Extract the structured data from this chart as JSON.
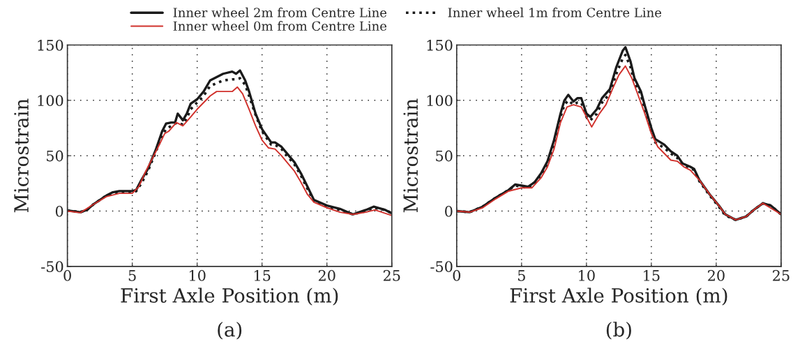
{
  "chart_data": [
    {
      "type": "line",
      "xlabel": "First Axle Position (m)",
      "ylabel": "Microstrain",
      "annotations": [
        "(a)"
      ],
      "xlim": [
        0,
        25
      ],
      "xticks": [
        0,
        5,
        10,
        15,
        20,
        25
      ],
      "ylim": [
        -50,
        150
      ],
      "yticks": [
        -50,
        0,
        50,
        100,
        150
      ],
      "grid": true,
      "legend": "top",
      "series": [
        {
          "name": "Inner wheel 2m from Centre Line",
          "color": "#1a1a1a",
          "line_style": "solid",
          "x": [
            0,
            1,
            1.5,
            2,
            3,
            3.5,
            4,
            5,
            5.3,
            5.7,
            6.2,
            6.8,
            7.3,
            7.6,
            8,
            8.3,
            8.5,
            8.9,
            9.2,
            9.5,
            10,
            10.5,
            11,
            12,
            12.7,
            13,
            13.3,
            13.7,
            14,
            14.5,
            15,
            15.7,
            16,
            16.5,
            17,
            17.5,
            18,
            18.5,
            19,
            20,
            21,
            22,
            23,
            23.6,
            24.5,
            25
          ],
          "values": [
            0.5,
            -1,
            1,
            6,
            14,
            17,
            18,
            18,
            19,
            28,
            38,
            55,
            72,
            79,
            80,
            80,
            88,
            82,
            88,
            97,
            101,
            108,
            118,
            124,
            126,
            124,
            127,
            118,
            108,
            88,
            74,
            62,
            62,
            58,
            51,
            44,
            34,
            22,
            10,
            5,
            2,
            -3,
            1,
            4,
            1,
            -2
          ]
        },
        {
          "name": "Inner wheel 1m from Centre Line",
          "color": "#1a1a1a",
          "line_style": "dotted",
          "x": [
            0,
            1,
            1.5,
            2,
            3,
            3.5,
            4,
            5,
            5.3,
            5.7,
            6.2,
            6.8,
            7.3,
            7.6,
            8,
            8.3,
            8.5,
            8.9,
            9.2,
            9.5,
            10,
            10.5,
            11,
            12,
            12.7,
            13,
            13.3,
            13.7,
            14,
            14.5,
            15,
            15.7,
            16,
            16.5,
            17,
            17.5,
            18,
            18.5,
            19,
            20,
            21,
            22,
            23,
            23.6,
            24.5,
            25
          ],
          "values": [
            0.5,
            -1,
            1,
            6,
            14,
            16,
            17,
            17,
            18,
            25,
            36,
            53,
            68,
            74,
            77,
            79,
            80,
            78,
            84,
            92,
            98,
            104,
            113,
            118,
            119,
            119,
            120,
            114,
            104,
            87,
            72,
            60,
            60,
            56,
            49,
            42,
            32,
            20,
            9,
            4,
            1,
            -3,
            0,
            3,
            1,
            -2
          ]
        },
        {
          "name": "Inner wheel 0m from Centre Line",
          "color": "#d0302b",
          "line_style": "solid",
          "x": [
            0,
            1,
            2,
            3,
            4,
            5,
            5.5,
            6,
            7,
            7.5,
            7.8,
            8.4,
            8.9,
            9.5,
            10,
            11,
            11.5,
            12,
            12.7,
            13.1,
            13.5,
            14,
            14.5,
            15,
            15.5,
            16,
            16.5,
            17,
            17.5,
            18,
            18.5,
            19,
            20,
            21,
            22,
            23,
            23.7,
            25
          ],
          "values": [
            0,
            -1.5,
            6,
            13,
            16,
            16,
            22,
            35,
            58,
            70,
            72,
            80,
            77,
            85,
            92,
            104,
            108,
            108,
            108,
            112,
            106,
            92,
            77,
            64,
            57,
            56,
            50,
            43,
            36,
            26,
            15,
            8,
            3,
            -1,
            -3,
            -1,
            1,
            -4
          ]
        }
      ]
    },
    {
      "type": "line",
      "xlabel": "First Axle Position (m)",
      "ylabel": "Microstrain",
      "annotations": [
        "(b)"
      ],
      "xlim": [
        0,
        25
      ],
      "xticks": [
        0,
        5,
        10,
        15,
        20,
        25
      ],
      "ylim": [
        -50,
        150
      ],
      "yticks": [
        -50,
        0,
        50,
        100,
        150
      ],
      "grid": true,
      "series": [
        {
          "color": "#1a1a1a",
          "line_style": "solid",
          "x": [
            0,
            1,
            2,
            3,
            4,
            4.5,
            5,
            5.5,
            6,
            6.5,
            7,
            7.5,
            8,
            8.3,
            8.6,
            9,
            9.3,
            9.6,
            10,
            10.3,
            10.8,
            11.2,
            11.8,
            12.3,
            12.8,
            13,
            13.4,
            13.7,
            14.2,
            14.5,
            15,
            15.3,
            16,
            16.5,
            17,
            17.4,
            18,
            18.3,
            18.7,
            19.5,
            20.2,
            20.7,
            21.5,
            22.3,
            23,
            23.6,
            24.2,
            25
          ],
          "values": [
            0,
            -1,
            4,
            12,
            19,
            24,
            23,
            22,
            26,
            34,
            45,
            64,
            88,
            100,
            105,
            99,
            102,
            102,
            88,
            85,
            92,
            102,
            110,
            130,
            145,
            148,
            135,
            120,
            108,
            95,
            75,
            65,
            60,
            54,
            50,
            43,
            40,
            38,
            28,
            15,
            5,
            -3,
            -8,
            -5,
            2,
            7,
            5,
            -3
          ]
        },
        {
          "color": "#1a1a1a",
          "line_style": "dotted",
          "x": [
            0,
            1,
            2,
            3,
            4,
            4.5,
            5,
            5.5,
            6,
            6.5,
            7,
            7.5,
            8,
            8.3,
            8.6,
            9,
            9.3,
            9.6,
            10,
            10.3,
            10.8,
            11.2,
            11.8,
            12.3,
            12.8,
            13,
            13.4,
            13.7,
            14.2,
            14.5,
            15,
            15.3,
            16,
            16.5,
            17,
            17.4,
            18,
            18.3,
            18.7,
            19.5,
            20.2,
            20.7,
            21.5,
            22.3,
            23,
            23.6,
            24.2,
            25
          ],
          "values": [
            0,
            -1,
            4,
            12,
            19,
            23,
            22,
            21,
            25,
            33,
            43,
            61,
            85,
            96,
            100,
            96,
            98,
            98,
            85,
            82,
            88,
            98,
            106,
            124,
            138,
            141,
            130,
            116,
            105,
            92,
            72,
            62,
            57,
            52,
            48,
            42,
            39,
            37,
            27,
            14,
            4,
            -4,
            -8,
            -5,
            2,
            7,
            5,
            -3
          ]
        },
        {
          "color": "#d0302b",
          "line_style": "solid",
          "x": [
            0,
            1,
            2,
            3,
            4,
            5,
            5.8,
            6.5,
            7,
            7.5,
            8,
            8.5,
            9,
            9.6,
            10,
            10.4,
            11,
            11.5,
            12,
            12.5,
            13,
            13.5,
            14,
            14.5,
            15,
            15.5,
            16,
            16.5,
            17,
            17.5,
            18,
            18.7,
            19.5,
            20.2,
            20.7,
            21.5,
            22.3,
            23,
            23.6,
            25
          ],
          "values": [
            0,
            -1,
            3,
            11,
            18,
            21,
            21,
            30,
            40,
            56,
            80,
            94,
            96,
            94,
            85,
            76,
            88,
            96,
            110,
            123,
            131,
            120,
            104,
            88,
            70,
            58,
            52,
            46,
            45,
            40,
            37,
            28,
            15,
            5,
            -3,
            -8,
            -5,
            2,
            7,
            -3
          ]
        }
      ]
    }
  ]
}
